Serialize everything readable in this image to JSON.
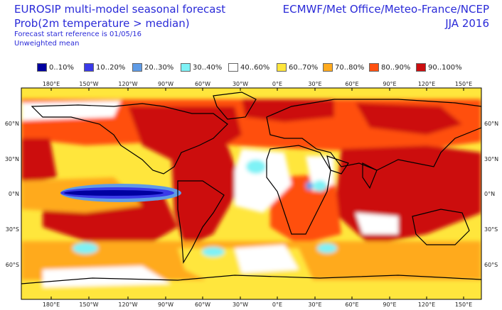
{
  "header": {
    "title": "EUROSIP multi-model seasonal forecast",
    "subtitle": "Prob(2m temperature > median)",
    "reference": "Forecast start reference is 01/05/16",
    "mean": "Unweighted mean",
    "centres": "ECMWF/Met Office/Meteo-France/NCEP",
    "season": "JJA 2016"
  },
  "legend": [
    {
      "label": "0..10%",
      "color": "#0000a0"
    },
    {
      "label": "10..20%",
      "color": "#3a3ae8"
    },
    {
      "label": "20..30%",
      "color": "#5f9be6"
    },
    {
      "label": "30..40%",
      "color": "#7ef2f6"
    },
    {
      "label": "40..60%",
      "color": "#ffffff"
    },
    {
      "label": "60..70%",
      "color": "#ffe63c"
    },
    {
      "label": "70..80%",
      "color": "#ffaa1e"
    },
    {
      "label": "80..90%",
      "color": "#ff5010"
    },
    {
      "label": "90..100%",
      "color": "#cc0e10"
    }
  ],
  "axes": {
    "top_labels": [
      "180°E",
      "150°W",
      "120°W",
      "90°W",
      "60°W",
      "30°W",
      "0°E",
      "30°E",
      "60°E",
      "90°E",
      "120°E",
      "150°E"
    ],
    "bottom_labels": [
      "180°E",
      "150°W",
      "120°W",
      "90°W",
      "60°W",
      "30°W",
      "0°E",
      "30°E",
      "60°E",
      "90°E",
      "120°E",
      "150°E"
    ],
    "left_labels": [
      "60°N",
      "30°N",
      "0°N",
      "30°S",
      "60°S"
    ],
    "right_labels": [
      "60°N",
      "30°N",
      "0°N",
      "30°S",
      "60°S"
    ]
  }
}
